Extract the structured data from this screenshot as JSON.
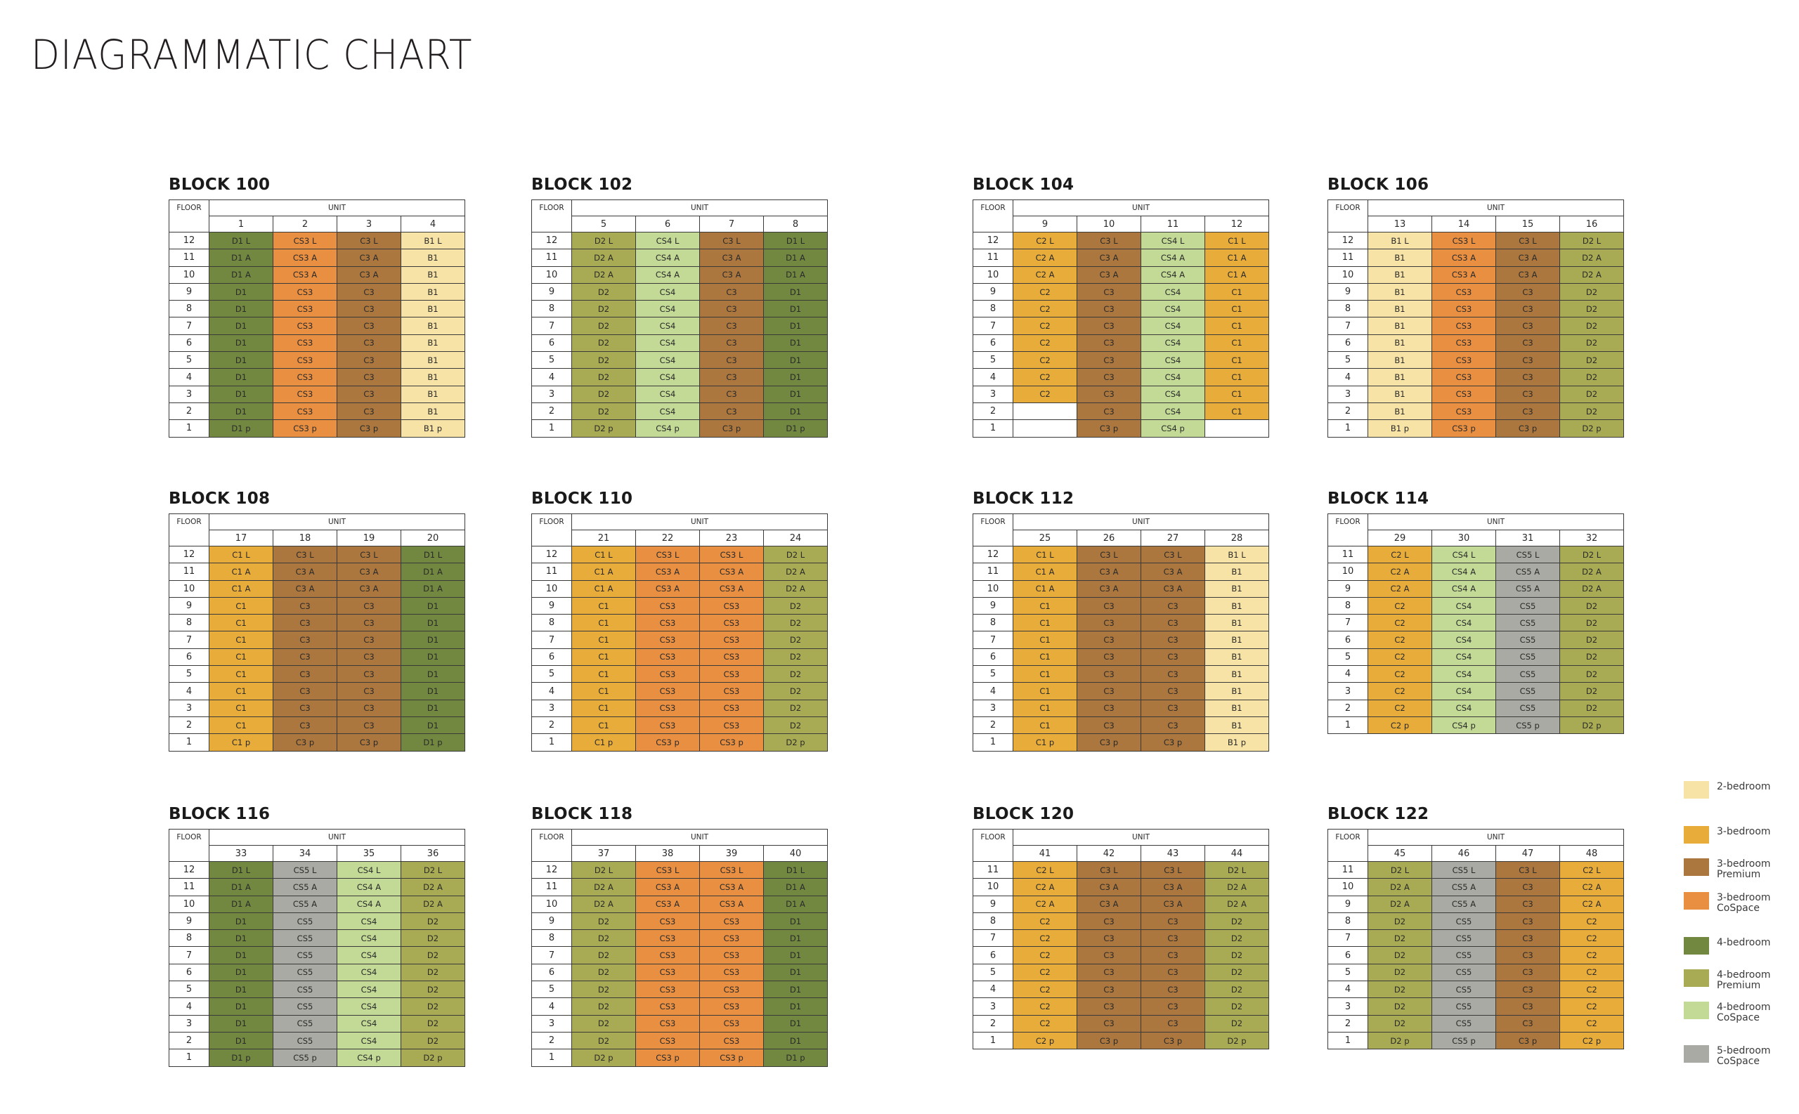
{
  "title": "DIAGRAMMATIC CHART",
  "header_floor": "FLOOR",
  "header_unit": "UNIT",
  "colors": {
    "2b": "#f7e3a6",
    "3b": "#e8ac3b",
    "3bp": "#ab773e",
    "3bc": "#e98f42",
    "4b": "#728840",
    "4bp": "#a8ab54",
    "4bc": "#c2da96",
    "5bc": "#a9aaa3"
  },
  "legend": [
    {
      "key": "2b",
      "label": "2-bedroom"
    },
    {
      "key": "3b",
      "label": "3-bedroom"
    },
    {
      "key": "3bp",
      "label": "3-bedroom\nPremium"
    },
    {
      "key": "3bc",
      "label": "3-bedroom\nCoSpace"
    },
    {
      "key": "4b",
      "label": "4-bedroom"
    },
    {
      "key": "4bp",
      "label": "4-bedroom\nPremium"
    },
    {
      "key": "4bc",
      "label": "4-bedroom\nCoSpace"
    },
    {
      "key": "5bc",
      "label": "5-bedroom\nCoSpace"
    }
  ],
  "blocks": [
    {
      "name": "BLOCK 100",
      "units": [
        "1",
        "2",
        "3",
        "4"
      ],
      "floors": [
        "12",
        "11",
        "10",
        "9",
        "8",
        "7",
        "6",
        "5",
        "4",
        "3",
        "2",
        "1"
      ],
      "columns": [
        {
          "type": "4b",
          "cells": [
            "D1 L",
            "D1 A",
            "D1 A",
            "D1",
            "D1",
            "D1",
            "D1",
            "D1",
            "D1",
            "D1",
            "D1",
            "D1 p"
          ]
        },
        {
          "type": "3bc",
          "cells": [
            "CS3 L",
            "CS3 A",
            "CS3 A",
            "CS3",
            "CS3",
            "CS3",
            "CS3",
            "CS3",
            "CS3",
            "CS3",
            "CS3",
            "CS3 p"
          ]
        },
        {
          "type": "3bp",
          "cells": [
            "C3 L",
            "C3 A",
            "C3 A",
            "C3",
            "C3",
            "C3",
            "C3",
            "C3",
            "C3",
            "C3",
            "C3",
            "C3 p"
          ]
        },
        {
          "type": "2b",
          "cells": [
            "B1 L",
            "B1",
            "B1",
            "B1",
            "B1",
            "B1",
            "B1",
            "B1",
            "B1",
            "B1",
            "B1",
            "B1 p"
          ]
        }
      ]
    },
    {
      "name": "BLOCK 102",
      "units": [
        "5",
        "6",
        "7",
        "8"
      ],
      "floors": [
        "12",
        "11",
        "10",
        "9",
        "8",
        "7",
        "6",
        "5",
        "4",
        "3",
        "2",
        "1"
      ],
      "columns": [
        {
          "type": "4bp",
          "cells": [
            "D2 L",
            "D2 A",
            "D2 A",
            "D2",
            "D2",
            "D2",
            "D2",
            "D2",
            "D2",
            "D2",
            "D2",
            "D2 p"
          ]
        },
        {
          "type": "4bc",
          "cells": [
            "CS4 L",
            "CS4 A",
            "CS4 A",
            "CS4",
            "CS4",
            "CS4",
            "CS4",
            "CS4",
            "CS4",
            "CS4",
            "CS4",
            "CS4 p"
          ]
        },
        {
          "type": "3bp",
          "cells": [
            "C3 L",
            "C3 A",
            "C3 A",
            "C3",
            "C3",
            "C3",
            "C3",
            "C3",
            "C3",
            "C3",
            "C3",
            "C3 p"
          ]
        },
        {
          "type": "4b",
          "cells": [
            "D1 L",
            "D1 A",
            "D1 A",
            "D1",
            "D1",
            "D1",
            "D1",
            "D1",
            "D1",
            "D1",
            "D1",
            "D1 p"
          ]
        }
      ]
    },
    {
      "name": "BLOCK 104",
      "units": [
        "9",
        "10",
        "11",
        "12"
      ],
      "floors": [
        "12",
        "11",
        "10",
        "9",
        "8",
        "7",
        "6",
        "5",
        "4",
        "3",
        "2",
        "1"
      ],
      "columns": [
        {
          "type": "3b",
          "cells": [
            "C2 L",
            "C2 A",
            "C2 A",
            "C2",
            "C2",
            "C2",
            "C2",
            "C2",
            "C2",
            "C2",
            "",
            ""
          ]
        },
        {
          "type": "3bp",
          "cells": [
            "C3 L",
            "C3 A",
            "C3 A",
            "C3",
            "C3",
            "C3",
            "C3",
            "C3",
            "C3",
            "C3",
            "C3",
            "C3 p"
          ]
        },
        {
          "type": "4bc",
          "cells": [
            "CS4 L",
            "CS4 A",
            "CS4 A",
            "CS4",
            "CS4",
            "CS4",
            "CS4",
            "CS4",
            "CS4",
            "CS4",
            "CS4",
            "CS4 p"
          ]
        },
        {
          "type": "3b",
          "cells": [
            "C1 L",
            "C1 A",
            "C1 A",
            "C1",
            "C1",
            "C1",
            "C1",
            "C1",
            "C1",
            "C1",
            "C1",
            ""
          ]
        }
      ]
    },
    {
      "name": "BLOCK 106",
      "units": [
        "13",
        "14",
        "15",
        "16"
      ],
      "floors": [
        "12",
        "11",
        "10",
        "9",
        "8",
        "7",
        "6",
        "5",
        "4",
        "3",
        "2",
        "1"
      ],
      "columns": [
        {
          "type": "2b",
          "cells": [
            "B1 L",
            "B1",
            "B1",
            "B1",
            "B1",
            "B1",
            "B1",
            "B1",
            "B1",
            "B1",
            "B1",
            "B1 p"
          ]
        },
        {
          "type": "3bc",
          "cells": [
            "CS3 L",
            "CS3 A",
            "CS3 A",
            "CS3",
            "CS3",
            "CS3",
            "CS3",
            "CS3",
            "CS3",
            "CS3",
            "CS3",
            "CS3 p"
          ]
        },
        {
          "type": "3bp",
          "cells": [
            "C3 L",
            "C3 A",
            "C3 A",
            "C3",
            "C3",
            "C3",
            "C3",
            "C3",
            "C3",
            "C3",
            "C3",
            "C3 p"
          ]
        },
        {
          "type": "4bp",
          "cells": [
            "D2 L",
            "D2 A",
            "D2 A",
            "D2",
            "D2",
            "D2",
            "D2",
            "D2",
            "D2",
            "D2",
            "D2",
            "D2 p"
          ]
        }
      ]
    },
    {
      "name": "BLOCK 108",
      "units": [
        "17",
        "18",
        "19",
        "20"
      ],
      "floors": [
        "12",
        "11",
        "10",
        "9",
        "8",
        "7",
        "6",
        "5",
        "4",
        "3",
        "2",
        "1"
      ],
      "columns": [
        {
          "type": "3b",
          "cells": [
            "C1 L",
            "C1 A",
            "C1 A",
            "C1",
            "C1",
            "C1",
            "C1",
            "C1",
            "C1",
            "C1",
            "C1",
            "C1 p"
          ]
        },
        {
          "type": "3bp",
          "cells": [
            "C3 L",
            "C3 A",
            "C3 A",
            "C3",
            "C3",
            "C3",
            "C3",
            "C3",
            "C3",
            "C3",
            "C3",
            "C3 p"
          ]
        },
        {
          "type": "3bp",
          "cells": [
            "C3 L",
            "C3 A",
            "C3 A",
            "C3",
            "C3",
            "C3",
            "C3",
            "C3",
            "C3",
            "C3",
            "C3",
            "C3 p"
          ]
        },
        {
          "type": "4b",
          "cells": [
            "D1 L",
            "D1 A",
            "D1 A",
            "D1",
            "D1",
            "D1",
            "D1",
            "D1",
            "D1",
            "D1",
            "D1",
            "D1 p"
          ]
        }
      ]
    },
    {
      "name": "BLOCK 110",
      "units": [
        "21",
        "22",
        "23",
        "24"
      ],
      "floors": [
        "12",
        "11",
        "10",
        "9",
        "8",
        "7",
        "6",
        "5",
        "4",
        "3",
        "2",
        "1"
      ],
      "columns": [
        {
          "type": "3b",
          "cells": [
            "C1 L",
            "C1 A",
            "C1 A",
            "C1",
            "C1",
            "C1",
            "C1",
            "C1",
            "C1",
            "C1",
            "C1",
            "C1 p"
          ]
        },
        {
          "type": "3bc",
          "cells": [
            "CS3 L",
            "CS3 A",
            "CS3 A",
            "CS3",
            "CS3",
            "CS3",
            "CS3",
            "CS3",
            "CS3",
            "CS3",
            "CS3",
            "CS3 p"
          ]
        },
        {
          "type": "3bc",
          "cells": [
            "CS3 L",
            "CS3 A",
            "CS3 A",
            "CS3",
            "CS3",
            "CS3",
            "CS3",
            "CS3",
            "CS3",
            "CS3",
            "CS3",
            "CS3 p"
          ]
        },
        {
          "type": "4bp",
          "cells": [
            "D2 L",
            "D2 A",
            "D2 A",
            "D2",
            "D2",
            "D2",
            "D2",
            "D2",
            "D2",
            "D2",
            "D2",
            "D2 p"
          ]
        }
      ]
    },
    {
      "name": "BLOCK 112",
      "units": [
        "25",
        "26",
        "27",
        "28"
      ],
      "floors": [
        "12",
        "11",
        "10",
        "9",
        "8",
        "7",
        "6",
        "5",
        "4",
        "3",
        "2",
        "1"
      ],
      "columns": [
        {
          "type": "3b",
          "cells": [
            "C1 L",
            "C1 A",
            "C1 A",
            "C1",
            "C1",
            "C1",
            "C1",
            "C1",
            "C1",
            "C1",
            "C1",
            "C1 p"
          ]
        },
        {
          "type": "3bp",
          "cells": [
            "C3 L",
            "C3 A",
            "C3 A",
            "C3",
            "C3",
            "C3",
            "C3",
            "C3",
            "C3",
            "C3",
            "C3",
            "C3 p"
          ]
        },
        {
          "type": "3bp",
          "cells": [
            "C3 L",
            "C3 A",
            "C3 A",
            "C3",
            "C3",
            "C3",
            "C3",
            "C3",
            "C3",
            "C3",
            "C3",
            "C3 p"
          ]
        },
        {
          "type": "2b",
          "cells": [
            "B1 L",
            "B1",
            "B1",
            "B1",
            "B1",
            "B1",
            "B1",
            "B1",
            "B1",
            "B1",
            "B1",
            "B1 p"
          ]
        }
      ]
    },
    {
      "name": "BLOCK 114",
      "units": [
        "29",
        "30",
        "31",
        "32"
      ],
      "floors": [
        "11",
        "10",
        "9",
        "8",
        "7",
        "6",
        "5",
        "4",
        "3",
        "2",
        "1"
      ],
      "columns": [
        {
          "type": "3b",
          "cells": [
            "C2 L",
            "C2 A",
            "C2 A",
            "C2",
            "C2",
            "C2",
            "C2",
            "C2",
            "C2",
            "C2",
            "C2 p"
          ]
        },
        {
          "type": "4bc",
          "cells": [
            "CS4 L",
            "CS4 A",
            "CS4 A",
            "CS4",
            "CS4",
            "CS4",
            "CS4",
            "CS4",
            "CS4",
            "CS4",
            "CS4 p"
          ]
        },
        {
          "type": "5bc",
          "cells": [
            "CS5 L",
            "CS5 A",
            "CS5 A",
            "CS5",
            "CS5",
            "CS5",
            "CS5",
            "CS5",
            "CS5",
            "CS5",
            "CS5 p"
          ]
        },
        {
          "type": "4bp",
          "cells": [
            "D2 L",
            "D2 A",
            "D2 A",
            "D2",
            "D2",
            "D2",
            "D2",
            "D2",
            "D2",
            "D2",
            "D2 p"
          ]
        }
      ]
    },
    {
      "name": "BLOCK 116",
      "units": [
        "33",
        "34",
        "35",
        "36"
      ],
      "floors": [
        "12",
        "11",
        "10",
        "9",
        "8",
        "7",
        "6",
        "5",
        "4",
        "3",
        "2",
        "1"
      ],
      "columns": [
        {
          "type": "4b",
          "cells": [
            "D1 L",
            "D1 A",
            "D1 A",
            "D1",
            "D1",
            "D1",
            "D1",
            "D1",
            "D1",
            "D1",
            "D1",
            "D1 p"
          ]
        },
        {
          "type": "5bc",
          "cells": [
            "CS5 L",
            "CS5 A",
            "CS5 A",
            "CS5",
            "CS5",
            "CS5",
            "CS5",
            "CS5",
            "CS5",
            "CS5",
            "CS5",
            "CS5 p"
          ]
        },
        {
          "type": "4bc",
          "cells": [
            "CS4 L",
            "CS4 A",
            "CS4 A",
            "CS4",
            "CS4",
            "CS4",
            "CS4",
            "CS4",
            "CS4",
            "CS4",
            "CS4",
            "CS4 p"
          ]
        },
        {
          "type": "4bp",
          "cells": [
            "D2 L",
            "D2 A",
            "D2 A",
            "D2",
            "D2",
            "D2",
            "D2",
            "D2",
            "D2",
            "D2",
            "D2",
            "D2 p"
          ]
        }
      ]
    },
    {
      "name": "BLOCK 118",
      "units": [
        "37",
        "38",
        "39",
        "40"
      ],
      "floors": [
        "12",
        "11",
        "10",
        "9",
        "8",
        "7",
        "6",
        "5",
        "4",
        "3",
        "2",
        "1"
      ],
      "columns": [
        {
          "type": "4bp",
          "cells": [
            "D2 L",
            "D2 A",
            "D2 A",
            "D2",
            "D2",
            "D2",
            "D2",
            "D2",
            "D2",
            "D2",
            "D2",
            "D2 p"
          ]
        },
        {
          "type": "3bc",
          "cells": [
            "CS3 L",
            "CS3 A",
            "CS3 A",
            "CS3",
            "CS3",
            "CS3",
            "CS3",
            "CS3",
            "CS3",
            "CS3",
            "CS3",
            "CS3 p"
          ]
        },
        {
          "type": "3bc",
          "cells": [
            "CS3 L",
            "CS3 A",
            "CS3 A",
            "CS3",
            "CS3",
            "CS3",
            "CS3",
            "CS3",
            "CS3",
            "CS3",
            "CS3",
            "CS3 p"
          ]
        },
        {
          "type": "4b",
          "cells": [
            "D1 L",
            "D1 A",
            "D1 A",
            "D1",
            "D1",
            "D1",
            "D1",
            "D1",
            "D1",
            "D1",
            "D1",
            "D1 p"
          ]
        }
      ]
    },
    {
      "name": "BLOCK 120",
      "units": [
        "41",
        "42",
        "43",
        "44"
      ],
      "floors": [
        "11",
        "10",
        "9",
        "8",
        "7",
        "6",
        "5",
        "4",
        "3",
        "2",
        "1"
      ],
      "columns": [
        {
          "type": "3b",
          "cells": [
            "C2 L",
            "C2 A",
            "C2 A",
            "C2",
            "C2",
            "C2",
            "C2",
            "C2",
            "C2",
            "C2",
            "C2 p"
          ]
        },
        {
          "type": "3bp",
          "cells": [
            "C3 L",
            "C3 A",
            "C3 A",
            "C3",
            "C3",
            "C3",
            "C3",
            "C3",
            "C3",
            "C3",
            "C3 p"
          ]
        },
        {
          "type": "3bp",
          "cells": [
            "C3 L",
            "C3 A",
            "C3 A",
            "C3",
            "C3",
            "C3",
            "C3",
            "C3",
            "C3",
            "C3",
            "C3 p"
          ]
        },
        {
          "type": "4bp",
          "cells": [
            "D2 L",
            "D2 A",
            "D2 A",
            "D2",
            "D2",
            "D2",
            "D2",
            "D2",
            "D2",
            "D2",
            "D2 p"
          ]
        }
      ]
    },
    {
      "name": "BLOCK 122",
      "units": [
        "45",
        "46",
        "47",
        "48"
      ],
      "floors": [
        "11",
        "10",
        "9",
        "8",
        "7",
        "6",
        "5",
        "4",
        "3",
        "2",
        "1"
      ],
      "columns": [
        {
          "type": "4bp",
          "cells": [
            "D2 L",
            "D2 A",
            "D2 A",
            "D2",
            "D2",
            "D2",
            "D2",
            "D2",
            "D2",
            "D2",
            "D2 p"
          ]
        },
        {
          "type": "5bc",
          "cells": [
            "CS5 L",
            "CS5 A",
            "CS5 A",
            "CS5",
            "CS5",
            "CS5",
            "CS5",
            "CS5",
            "CS5",
            "CS5",
            "CS5 p"
          ]
        },
        {
          "type": "3bp",
          "cells": [
            "C3 L",
            "C3",
            "C3",
            "C3",
            "C3",
            "C3",
            "C3",
            "C3",
            "C3",
            "C3",
            "C3 p"
          ]
        },
        {
          "type": "3b",
          "cells": [
            "C2 L",
            "C2 A",
            "C2 A",
            "C2",
            "C2",
            "C2",
            "C2",
            "C2",
            "C2",
            "C2",
            "C2 p"
          ]
        }
      ]
    }
  ]
}
